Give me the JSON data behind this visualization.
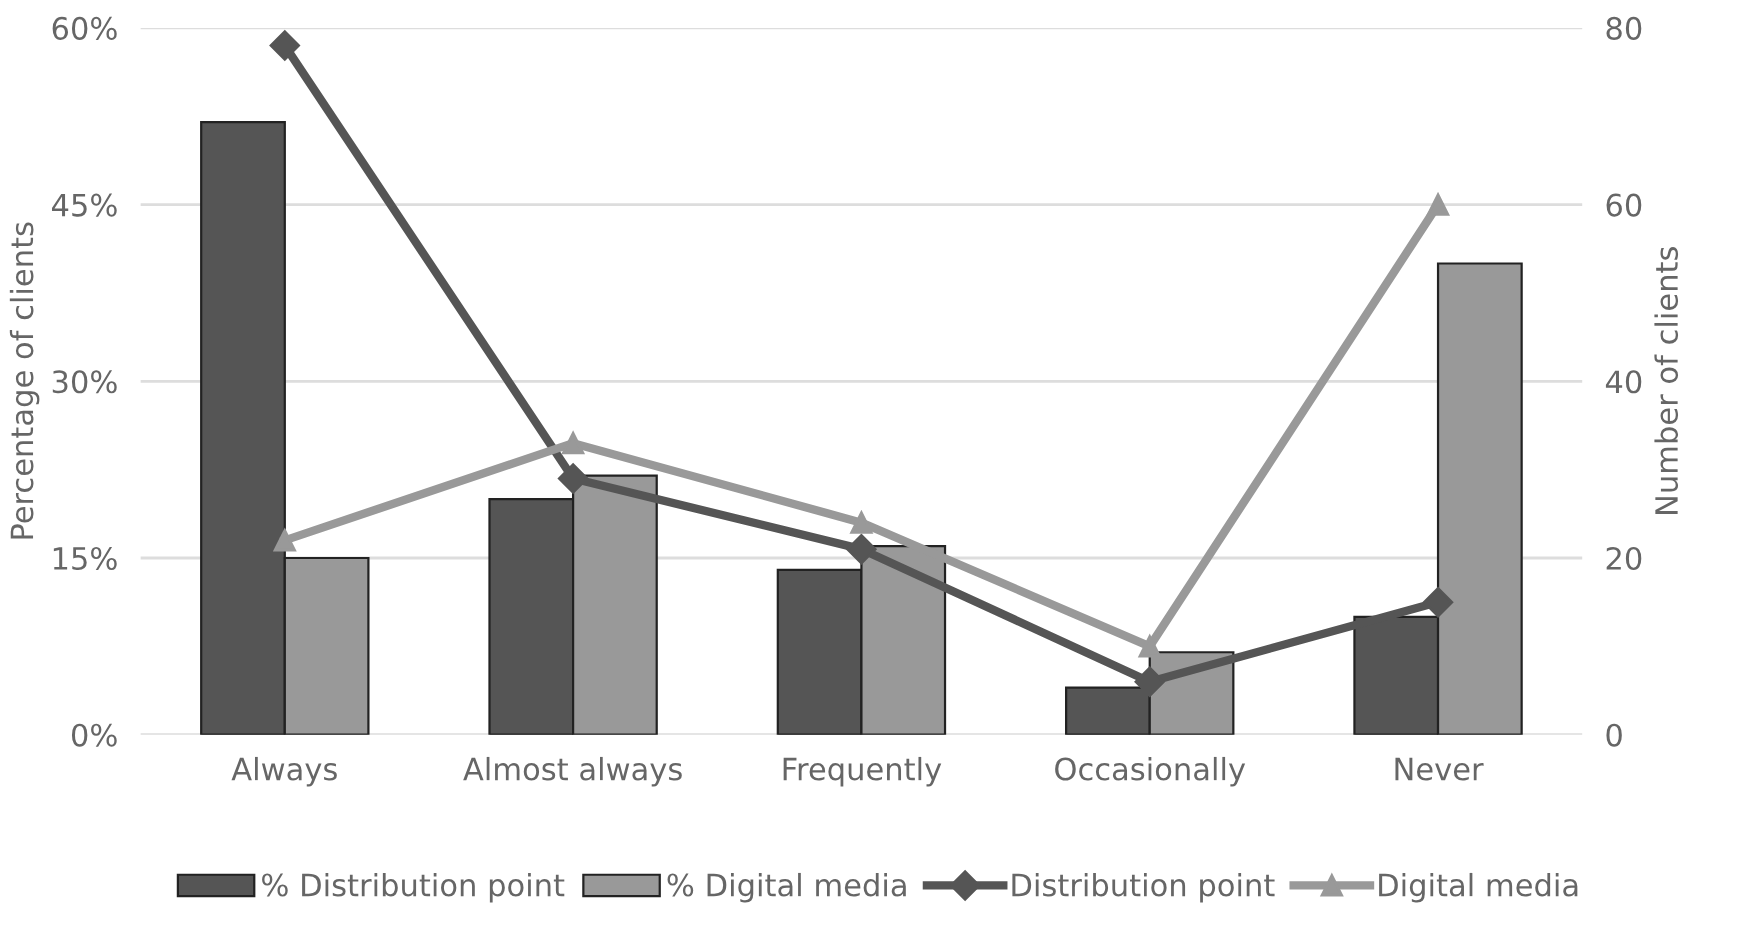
{
  "chart_data": {
    "type": "bar",
    "categories": [
      "Always",
      "Almost always",
      "Frequently",
      "Occasionally",
      "Never"
    ],
    "ylabel": "Percentage of clients",
    "y2label": "Number of clients",
    "ylim": [
      0,
      60
    ],
    "yticks": [
      {
        "value": 0,
        "label": "0%"
      },
      {
        "value": 15,
        "label": "15%"
      },
      {
        "value": 30,
        "label": "30%"
      },
      {
        "value": 45,
        "label": "45%"
      },
      {
        "value": 60,
        "label": "60%"
      }
    ],
    "y2lim": [
      0,
      80
    ],
    "y2ticks": [
      0,
      20,
      40,
      60,
      80
    ],
    "grid": "y",
    "legend": "bottom",
    "series": [
      {
        "name": "% Distribution point",
        "color": "#555555",
        "values": [
          52,
          20,
          14,
          4,
          10
        ]
      },
      {
        "name": "% Digital media",
        "color": "#999999",
        "values": [
          15,
          22,
          16,
          7,
          40
        ]
      },
      {
        "name": "Distribution point",
        "type": "line",
        "axis": "y2",
        "marker": "diamond",
        "color": "#555555",
        "values": [
          78,
          29,
          21,
          6,
          15
        ]
      },
      {
        "name": "Digital media",
        "type": "line",
        "axis": "y2",
        "marker": "triangle",
        "color": "#999999",
        "values": [
          22,
          33,
          24,
          10,
          60
        ]
      }
    ]
  }
}
